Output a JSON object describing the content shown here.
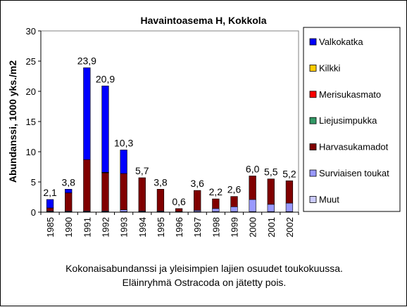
{
  "chart_data": {
    "type": "bar",
    "stacked": true,
    "title": "Havaintoasema H, Kokkola",
    "xlabel": "",
    "ylabel": "Abundanssi, 1000 yks./m2",
    "ylim": [
      0,
      30
    ],
    "yticks": [
      "0",
      "5",
      "10",
      "15",
      "20",
      "25",
      "30"
    ],
    "categories": [
      "1985",
      "1990",
      "1991",
      "1992",
      "1993",
      "1994",
      "1995",
      "1996",
      "1997",
      "1998",
      "1999",
      "2000",
      "2001",
      "2002"
    ],
    "totals_labels": [
      "2,1",
      "3,8",
      "23,9",
      "20,9",
      "10,3",
      "5,7",
      "3,8",
      "0,6",
      "3,6",
      "2,2",
      "2,6",
      "6,0",
      "5,5",
      "5,2"
    ],
    "totals": [
      2.1,
      3.8,
      23.9,
      20.9,
      10.3,
      5.7,
      3.8,
      0.6,
      3.6,
      2.2,
      2.6,
      6.0,
      5.5,
      5.2
    ],
    "legend_position": "right",
    "series": [
      {
        "name": "Muut",
        "color": "#ccccff",
        "values": [
          0.1,
          0.1,
          0.1,
          0.1,
          0.1,
          0.1,
          0.1,
          0.05,
          0.1,
          0.1,
          0.1,
          0.1,
          0.1,
          0.1
        ]
      },
      {
        "name": "Surviaisen toukat",
        "color": "#9999ff",
        "values": [
          0.1,
          0.1,
          0.1,
          0.1,
          0.3,
          0.1,
          0.1,
          0.05,
          0.2,
          0.5,
          0.8,
          2.0,
          1.2,
          1.4
        ]
      },
      {
        "name": "Harvasukamadot",
        "color": "#800000",
        "values": [
          0.5,
          3.0,
          8.5,
          6.3,
          6.0,
          5.5,
          3.6,
          0.5,
          3.3,
          1.6,
          1.7,
          3.9,
          4.2,
          3.7
        ]
      },
      {
        "name": "Liejusimpukka",
        "color": "#339966",
        "values": [
          0,
          0,
          0,
          0.05,
          0,
          0,
          0,
          0,
          0,
          0,
          0,
          0,
          0,
          0
        ]
      },
      {
        "name": "Merisukasmato",
        "color": "#ff0000",
        "values": [
          0,
          0,
          0,
          0.05,
          0,
          0,
          0,
          0,
          0,
          0,
          0,
          0,
          0,
          0
        ]
      },
      {
        "name": "Kilkki",
        "color": "#ffcc00",
        "values": [
          0,
          0,
          0,
          0,
          0,
          0,
          0,
          0,
          0,
          0,
          0,
          0,
          0,
          0
        ]
      },
      {
        "name": "Valkokatka",
        "color": "#0000ff",
        "values": [
          1.4,
          0.6,
          15.2,
          14.3,
          3.9,
          0,
          0,
          0,
          0,
          0,
          0,
          0,
          0,
          0
        ]
      }
    ],
    "legend_order": [
      "Valkokatka",
      "Kilkki",
      "Merisukasmato",
      "Liejusimpukka",
      "Harvasukamadot",
      "Surviaisen toukat",
      "Muut"
    ]
  },
  "caption": {
    "line1": "Kokonaisabundanssi ja yleisimpien lajien osuudet toukokuussa.",
    "line2": "Eläinryhmä Ostracoda on jätetty pois."
  }
}
